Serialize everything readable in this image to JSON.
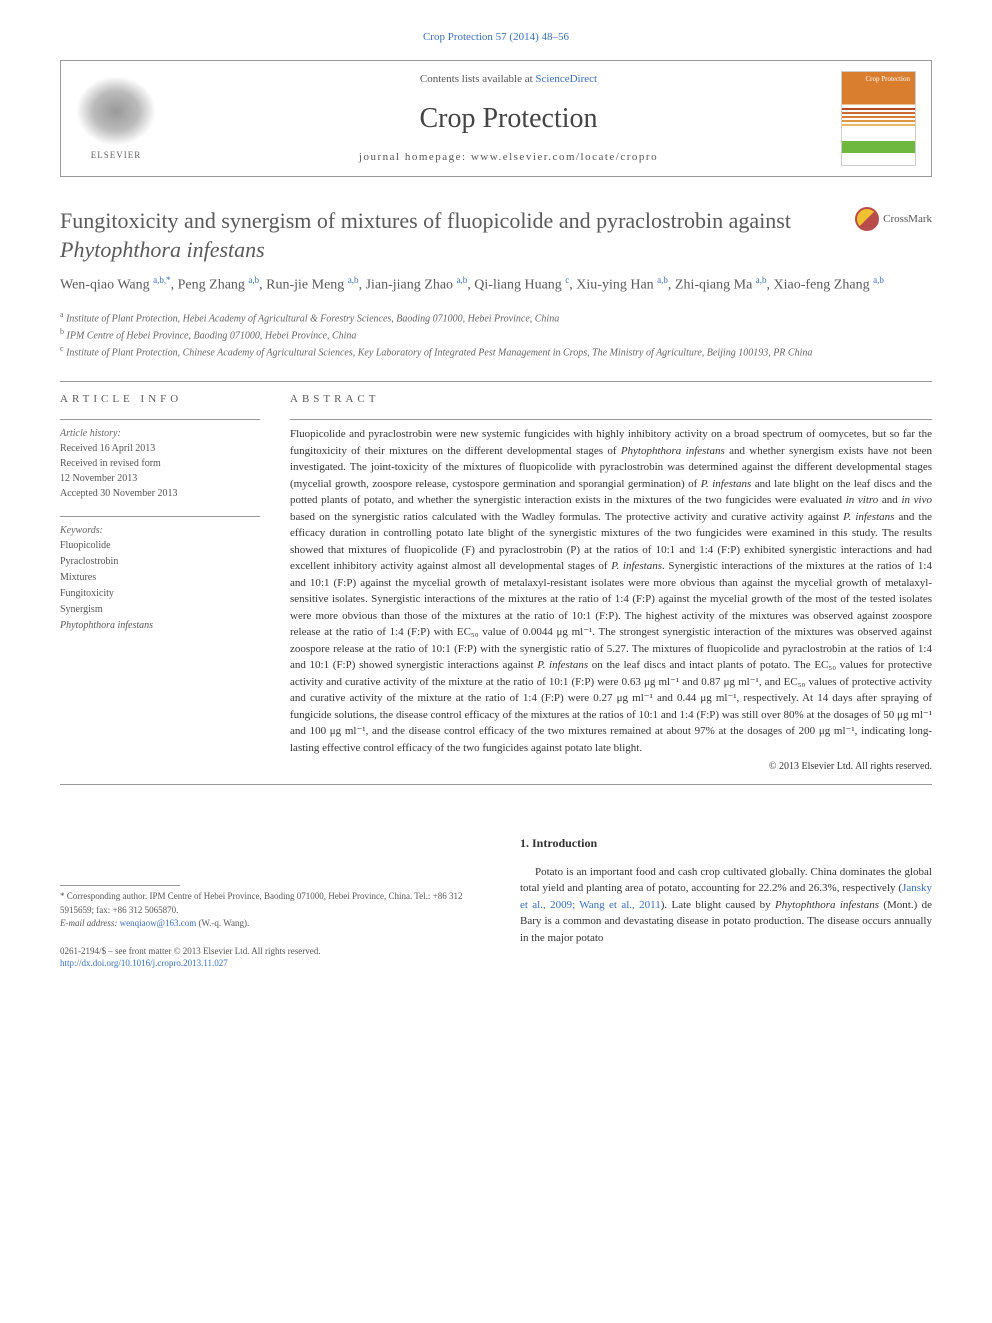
{
  "top_link": "Crop Protection 57 (2014) 48–56",
  "header": {
    "contents_prefix": "Contents lists available at ",
    "contents_link": "ScienceDirect",
    "journal_name": "Crop Protection",
    "homepage_prefix": "journal homepage: ",
    "homepage_url": "www.elsevier.com/locate/cropro",
    "elsevier_label": "ELSEVIER",
    "cover_title": "Crop Protection"
  },
  "cover_colors": {
    "top": "#d97d2e",
    "stripes": [
      "#b54a2a",
      "#cc6a30",
      "#d97d2e",
      "#e0953f",
      "#ebb762"
    ],
    "accent": "#6fb83f"
  },
  "crossmark_label": "CrossMark",
  "title_parts": {
    "p1": "Fungitoxicity and synergism of mixtures of fluopicolide and pyraclostrobin against ",
    "p2_italic": "Phytophthora infestans"
  },
  "authors_html": "Wen-qiao Wang <sup>a,b,*</sup>, Peng Zhang <sup>a,b</sup>, Run-jie Meng <sup>a,b</sup>, Jian-jiang Zhao <sup>a,b</sup>, Qi-liang Huang <sup>c</sup>, Xiu-ying Han <sup>a,b</sup>, Zhi-qiang Ma <sup>a,b</sup>, Xiao-feng Zhang <sup>a,b</sup>",
  "affiliations": [
    {
      "sup": "a",
      "text": "Institute of Plant Protection, Hebei Academy of Agricultural & Forestry Sciences, Baoding 071000, Hebei Province, China"
    },
    {
      "sup": "b",
      "text": "IPM Centre of Hebei Province, Baoding 071000, Hebei Province, China"
    },
    {
      "sup": "c",
      "text": "Institute of Plant Protection, Chinese Academy of Agricultural Sciences, Key Laboratory of Integrated Pest Management in Crops, The Ministry of Agriculture, Beijing 100193, PR China"
    }
  ],
  "article_info": {
    "heading": "ARTICLE INFO",
    "history_label": "Article history:",
    "history": [
      "Received 16 April 2013",
      "Received in revised form",
      "12 November 2013",
      "Accepted 30 November 2013"
    ],
    "keywords_label": "Keywords:",
    "keywords": [
      "Fluopicolide",
      "Pyraclostrobin",
      "Mixtures",
      "Fungitoxicity",
      "Synergism",
      "Phytophthora infestans"
    ]
  },
  "abstract": {
    "heading": "ABSTRACT",
    "text": "Fluopicolide and pyraclostrobin were new systemic fungicides with highly inhibitory activity on a broad spectrum of oomycetes, but so far the fungitoxicity of their mixtures on the different developmental stages of Phytophthora infestans and whether synergism exists have not been investigated. The joint-toxicity of the mixtures of fluopicolide with pyraclostrobin was determined against the different developmental stages (mycelial growth, zoospore release, cystospore germination and sporangial germination) of P. infestans and late blight on the leaf discs and the potted plants of potato, and whether the synergistic interaction exists in the mixtures of the two fungicides were evaluated in vitro and in vivo based on the synergistic ratios calculated with the Wadley formulas. The protective activity and curative activity against P. infestans and the efficacy duration in controlling potato late blight of the synergistic mixtures of the two fungicides were examined in this study. The results showed that mixtures of fluopicolide (F) and pyraclostrobin (P) at the ratios of 10:1 and 1:4 (F:P) exhibited synergistic interactions and had excellent inhibitory activity against almost all developmental stages of P. infestans. Synergistic interactions of the mixtures at the ratios of 1:4 and 10:1 (F:P) against the mycelial growth of metalaxyl-resistant isolates were more obvious than against the mycelial growth of metalaxyl-sensitive isolates. Synergistic interactions of the mixtures at the ratio of 1:4 (F:P) against the mycelial growth of the most of the tested isolates were more obvious than those of the mixtures at the ratio of 10:1 (F:P). The highest activity of the mixtures was observed against zoospore release at the ratio of 1:4 (F:P) with EC₅₀ value of 0.0044 μg ml⁻¹. The strongest synergistic interaction of the mixtures was observed against zoospore release at the ratio of 10:1 (F:P) with the synergistic ratio of 5.27. The mixtures of fluopicolide and pyraclostrobin at the ratios of 1:4 and 10:1 (F:P) showed synergistic interactions against P. infestans on the leaf discs and intact plants of potato. The EC₅₀ values for protective activity and curative activity of the mixture at the ratio of 10:1 (F:P) were 0.63 μg ml⁻¹ and 0.87 μg ml⁻¹, and EC₅₀ values of protective activity and curative activity of the mixture at the ratio of 1:4 (F:P) were 0.27 μg ml⁻¹ and 0.44 μg ml⁻¹, respectively. At 14 days after spraying of fungicide solutions, the disease control efficacy of the mixtures at the ratios of 10:1 and 1:4 (F:P) was still over 80% at the dosages of 50 μg ml⁻¹ and 100 μg ml⁻¹, and the disease control efficacy of the two mixtures remained at about 97% at the dosages of 200 μg ml⁻¹, indicating long-lasting effective control efficacy of the two fungicides against potato late blight.",
    "copyright": "© 2013 Elsevier Ltd. All rights reserved."
  },
  "intro": {
    "heading": "1. Introduction",
    "text_p1": "Potato is an important food and cash crop cultivated globally. China dominates the global total yield and planting area of potato, accounting for 22.2% and 26.3%, respectively (",
    "link1": "Jansky et al., 2009; Wang et al., 2011",
    "text_p2": "). Late blight caused by ",
    "italic1": "Phytophthora infestans",
    "text_p3": " (Mont.) de Bary is a common and devastating disease in potato production. The disease occurs annually in the major potato"
  },
  "footer": {
    "corresponding": "* Corresponding author. IPM Centre of Hebei Province, Baoding 071000, Hebei Province, China. Tel.: +86 312 5915659; fax: +86 312 5065870.",
    "email_label": "E-mail address: ",
    "email": "wenqiaow@163.com",
    "email_suffix": " (W.-q. Wang).",
    "issn": "0261-2194/$ – see front matter © 2013 Elsevier Ltd. All rights reserved.",
    "doi": "http://dx.doi.org/10.1016/j.cropro.2013.11.027"
  },
  "colors": {
    "link": "#3a6fb7",
    "text": "#333333",
    "muted": "#5a5a5a",
    "border": "#999999"
  }
}
